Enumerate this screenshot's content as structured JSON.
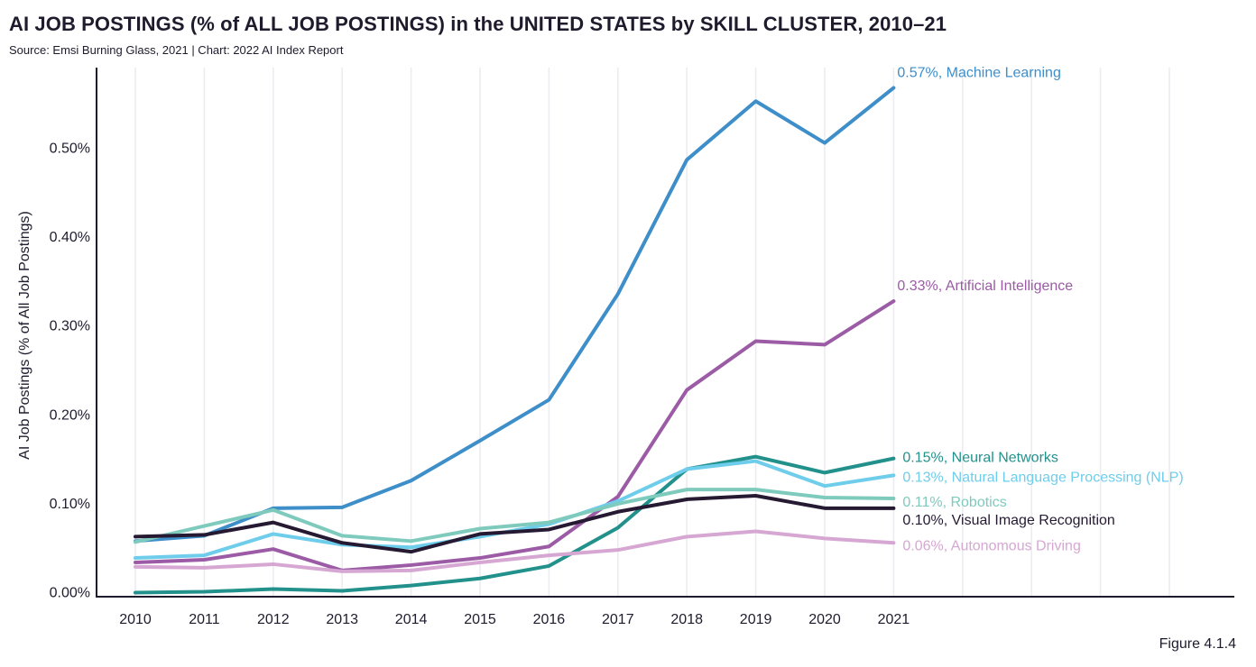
{
  "title": "AI JOB POSTINGS (% of ALL JOB POSTINGS) in the UNITED STATES by SKILL CLUSTER, 2010–21",
  "subtitle": "Source: Emsi Burning Glass, 2021 | Chart: 2022 AI Index Report",
  "figure_label": "Figure 4.1.4",
  "chart_data": {
    "type": "line",
    "title": "AI JOB POSTINGS (% of ALL JOB POSTINGS) in the UNITED STATES by SKILL CLUSTER, 2010–21",
    "xlabel": "",
    "ylabel": "AI Job Postings (% of All Job Postings)",
    "x": [
      "2010",
      "2011",
      "2012",
      "2013",
      "2014",
      "2015",
      "2016",
      "2017",
      "2018",
      "2019",
      "2020",
      "2021"
    ],
    "x_grid_extra": 4,
    "ylim": [
      0,
      0.58
    ],
    "yticks": [
      0,
      0.1,
      0.2,
      0.3,
      0.4,
      0.5
    ],
    "ytick_labels": [
      "0.00%",
      "0.10%",
      "0.20%",
      "0.30%",
      "0.40%",
      "0.50%"
    ],
    "grid": "vertical",
    "series": [
      {
        "name": "Machine Learning",
        "color": "#3d8ec9",
        "label": "0.57%, Machine Learning",
        "values": [
          0.058,
          0.064,
          0.095,
          0.096,
          0.126,
          0.171,
          0.217,
          0.336,
          0.487,
          0.553,
          0.506,
          0.568
        ]
      },
      {
        "name": "Artificial Intelligence",
        "color": "#9b5ba5",
        "label": "0.33%, Artificial Intelligence",
        "values": [
          0.034,
          0.037,
          0.049,
          0.025,
          0.031,
          0.039,
          0.052,
          0.108,
          0.228,
          0.283,
          0.279,
          0.328
        ]
      },
      {
        "name": "Neural Networks",
        "color": "#22918c",
        "label": "0.15%, Neural Networks",
        "values": [
          0.0,
          0.001,
          0.004,
          0.002,
          0.008,
          0.016,
          0.03,
          0.073,
          0.139,
          0.153,
          0.135,
          0.151
        ]
      },
      {
        "name": "Natural Language Processing (NLP)",
        "color": "#6fcdec",
        "label": "0.13%, Natural Language Processing (NLP)",
        "values": [
          0.039,
          0.042,
          0.066,
          0.054,
          0.051,
          0.063,
          0.077,
          0.103,
          0.139,
          0.148,
          0.12,
          0.132
        ]
      },
      {
        "name": "Robotics",
        "color": "#7ecbbd",
        "label": "0.11%, Robotics",
        "values": [
          0.057,
          0.075,
          0.093,
          0.064,
          0.058,
          0.072,
          0.079,
          0.1,
          0.116,
          0.116,
          0.107,
          0.106
        ]
      },
      {
        "name": "Visual Image Recognition",
        "color": "#261a33",
        "label": "0.10%, Visual Image Recognition",
        "values": [
          0.063,
          0.065,
          0.079,
          0.056,
          0.046,
          0.066,
          0.071,
          0.091,
          0.105,
          0.109,
          0.095,
          0.095
        ]
      },
      {
        "name": "Autonomous Driving",
        "color": "#d6a7d2",
        "label": "0.06%, Autonomous Driving",
        "values": [
          0.029,
          0.028,
          0.032,
          0.024,
          0.025,
          0.034,
          0.042,
          0.048,
          0.063,
          0.069,
          0.061,
          0.056
        ]
      }
    ]
  }
}
